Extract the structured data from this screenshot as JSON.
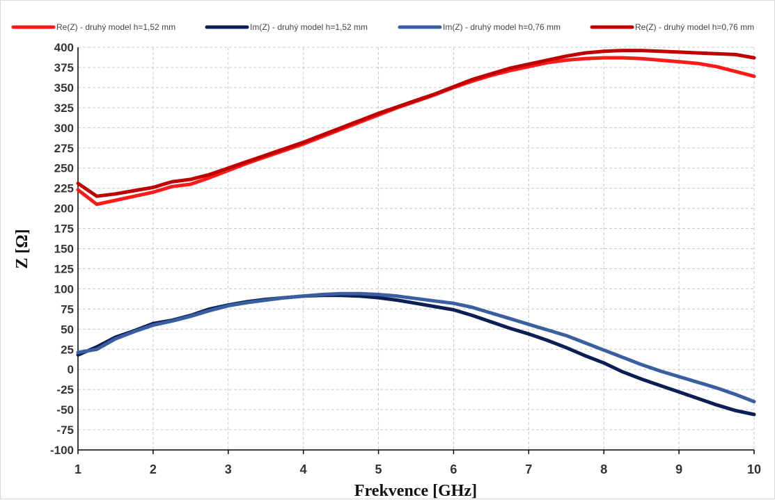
{
  "chart_data": {
    "type": "line",
    "title": "",
    "xlabel": "Frekvence [GHz]",
    "ylabel": "Z [Ω]",
    "xlim": [
      1,
      10
    ],
    "ylim": [
      -100,
      400
    ],
    "x_ticks": [
      "1",
      "2",
      "3",
      "4",
      "5",
      "6",
      "7",
      "8",
      "9",
      "10"
    ],
    "y_ticks": [
      "400",
      "375",
      "350",
      "325",
      "300",
      "275",
      "250",
      "225",
      "200",
      "175",
      "150",
      "125",
      "100",
      "75",
      "50",
      "25",
      "0",
      "-25",
      "-50",
      "-75",
      "-100"
    ],
    "grid": true,
    "legend_position": "top",
    "x": [
      1,
      1.25,
      1.5,
      1.75,
      2,
      2.25,
      2.5,
      2.75,
      3,
      3.25,
      3.5,
      3.75,
      4,
      4.25,
      4.5,
      4.75,
      5,
      5.25,
      5.5,
      5.75,
      6,
      6.25,
      6.5,
      6.75,
      7,
      7.25,
      7.5,
      7.75,
      8,
      8.25,
      8.5,
      8.75,
      9,
      9.25,
      9.5,
      9.75,
      10
    ],
    "series": [
      {
        "name": "Re(Z) - druhý model h=1,52 mm",
        "color": "#ff1a1a",
        "values": [
          223,
          205,
          210,
          215,
          220,
          227,
          230,
          238,
          247,
          256,
          264,
          272,
          280,
          289,
          298,
          307,
          316,
          325,
          333,
          341,
          350,
          358,
          365,
          371,
          376,
          381,
          384,
          386,
          387,
          387,
          386,
          384,
          382,
          380,
          376,
          370,
          364
        ]
      },
      {
        "name": "Im(Z) - druhý model h=1,52 mm",
        "color": "#0b1f55",
        "values": [
          18,
          28,
          40,
          48,
          57,
          61,
          67,
          75,
          80,
          84,
          87,
          89,
          91,
          92,
          92,
          91,
          89,
          86,
          82,
          78,
          74,
          67,
          59,
          51,
          44,
          36,
          27,
          17,
          8,
          -3,
          -12,
          -20,
          -28,
          -36,
          -44,
          -51,
          -56
        ]
      },
      {
        "name": "Im(Z) - druhý model h=0,76 mm",
        "color": "#3a5fa0",
        "values": [
          21,
          25,
          38,
          47,
          55,
          60,
          66,
          73,
          79,
          83,
          86,
          89,
          91,
          93,
          94,
          94,
          93,
          91,
          88,
          85,
          82,
          77,
          70,
          63,
          56,
          49,
          42,
          33,
          24,
          15,
          6,
          -2,
          -9,
          -16,
          -23,
          -31,
          -40
        ]
      },
      {
        "name": "Re(Z) - druhý model h=0,76 mm",
        "color": "#c00000",
        "values": [
          231,
          215,
          218,
          222,
          226,
          233,
          236,
          242,
          250,
          258,
          266,
          274,
          282,
          291,
          300,
          309,
          318,
          326,
          334,
          342,
          351,
          360,
          367,
          374,
          379,
          384,
          389,
          393,
          395,
          396,
          396,
          395,
          394,
          393,
          392,
          391,
          387
        ]
      }
    ]
  }
}
